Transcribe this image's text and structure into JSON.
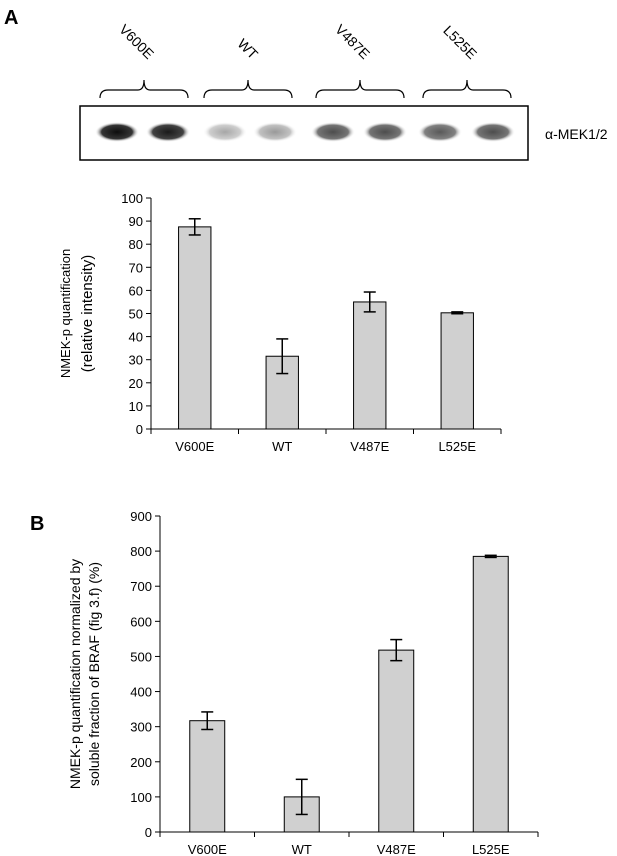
{
  "panel_a": {
    "label": "A",
    "blot": {
      "lane_groups": [
        "V600E",
        "WT",
        "V487E",
        "L525E"
      ],
      "antibody_label": "α-MEK1/2",
      "band_intensities": [
        0.95,
        0.9,
        0.35,
        0.4,
        0.7,
        0.7,
        0.65,
        0.7
      ]
    }
  },
  "panel_b": {
    "label": "B"
  },
  "chart_data": [
    {
      "type": "bar",
      "categories": [
        "V600E",
        "WT",
        "V487E",
        "L525E"
      ],
      "values": [
        87.5,
        31.5,
        55,
        50.3
      ],
      "errors": [
        3.5,
        7.5,
        4.3,
        0.4
      ],
      "title": "",
      "xlabel": "",
      "ylabel_line1": "NMEK-p quantification",
      "ylabel_line2": "(relative  intensity)",
      "ylim": [
        0,
        100
      ],
      "yticks": [
        0,
        10,
        20,
        30,
        40,
        50,
        60,
        70,
        80,
        90,
        100
      ],
      "bar_color": "#d0d0d0",
      "grid": false
    },
    {
      "type": "bar",
      "categories": [
        "V600E",
        "WT",
        "V487E",
        "L525E"
      ],
      "values": [
        317,
        100,
        518,
        785
      ],
      "errors": [
        25,
        50,
        30,
        3
      ],
      "title": "",
      "xlabel": "",
      "ylabel_line1": "NMEK-p quantification normalized by",
      "ylabel_line2": "soluble fraction of BRAF (fig 3.f) (%)",
      "ylim": [
        0,
        900
      ],
      "yticks": [
        0,
        100,
        200,
        300,
        400,
        500,
        600,
        700,
        800,
        900
      ],
      "bar_color": "#d0d0d0",
      "grid": false
    }
  ]
}
